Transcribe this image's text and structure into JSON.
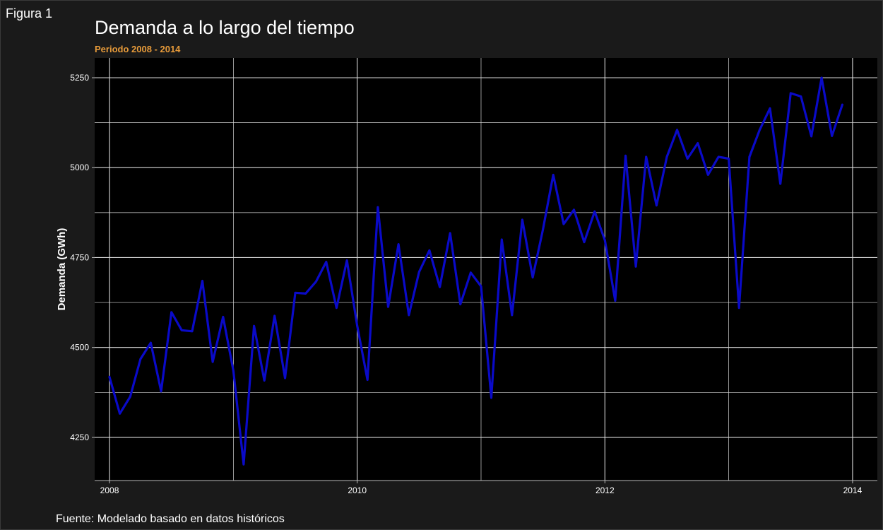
{
  "figure_label": "Figura 1",
  "caption": "Fuente: Modelado basado en datos históricos",
  "colors": {
    "background": "#1a1a1a",
    "panel": "#000000",
    "grid": "#d9d9d9",
    "line": "#0a0ac8",
    "subtitle": "#e69a3a",
    "text": "#ffffff"
  },
  "chart_data": {
    "type": "line",
    "title": "Demanda a lo largo del tiempo",
    "subtitle": "Periodo 2008 - 2014",
    "xlabel": "",
    "ylabel": "Demanda (GWh)",
    "xlim": [
      2007.88,
      2014.2
    ],
    "ylim": [
      4130,
      5305
    ],
    "xticks": [
      2008,
      2010,
      2012,
      2014
    ],
    "yticks": [
      4250,
      4500,
      4750,
      5000,
      5250
    ],
    "grid": true,
    "legend": "none",
    "series": [
      {
        "x": [
          2008.0,
          2008.083,
          2008.167,
          2008.25,
          2008.333,
          2008.417,
          2008.5,
          2008.583,
          2008.667,
          2008.75,
          2008.833,
          2008.917,
          2009.0,
          2009.083,
          2009.167,
          2009.25,
          2009.333,
          2009.417,
          2009.5,
          2009.583,
          2009.667,
          2009.75,
          2009.833,
          2009.917,
          2010.0,
          2010.083,
          2010.167,
          2010.25,
          2010.333,
          2010.417,
          2010.5,
          2010.583,
          2010.667,
          2010.75,
          2010.833,
          2010.917,
          2011.0,
          2011.083,
          2011.167,
          2011.25,
          2011.333,
          2011.417,
          2011.5,
          2011.583,
          2011.667,
          2011.75,
          2011.833,
          2011.917,
          2012.0,
          2012.083,
          2012.167,
          2012.25,
          2012.333,
          2012.417,
          2012.5,
          2012.583,
          2012.667,
          2012.75,
          2012.833,
          2012.917,
          2013.0,
          2013.083,
          2013.167,
          2013.25,
          2013.333,
          2013.417,
          2013.5,
          2013.583,
          2013.667,
          2013.75,
          2013.833,
          2013.917
        ],
        "values": [
          4418,
          4316,
          4363,
          4468,
          4513,
          4378,
          4598,
          4548,
          4545,
          4685,
          4460,
          4585,
          4435,
          4175,
          4560,
          4408,
          4588,
          4415,
          4652,
          4650,
          4683,
          4738,
          4610,
          4742,
          4560,
          4410,
          4890,
          4613,
          4787,
          4590,
          4710,
          4770,
          4668,
          4818,
          4620,
          4708,
          4670,
          4360,
          4800,
          4590,
          4855,
          4695,
          4828,
          4980,
          4843,
          4883,
          4793,
          4878,
          4798,
          4630,
          5033,
          4725,
          5030,
          4895,
          5030,
          5105,
          5025,
          5068,
          4980,
          5030,
          5025,
          4610,
          5030,
          5105,
          5165,
          4955,
          5207,
          5198,
          5087,
          5250,
          5088,
          5175
        ]
      }
    ]
  }
}
